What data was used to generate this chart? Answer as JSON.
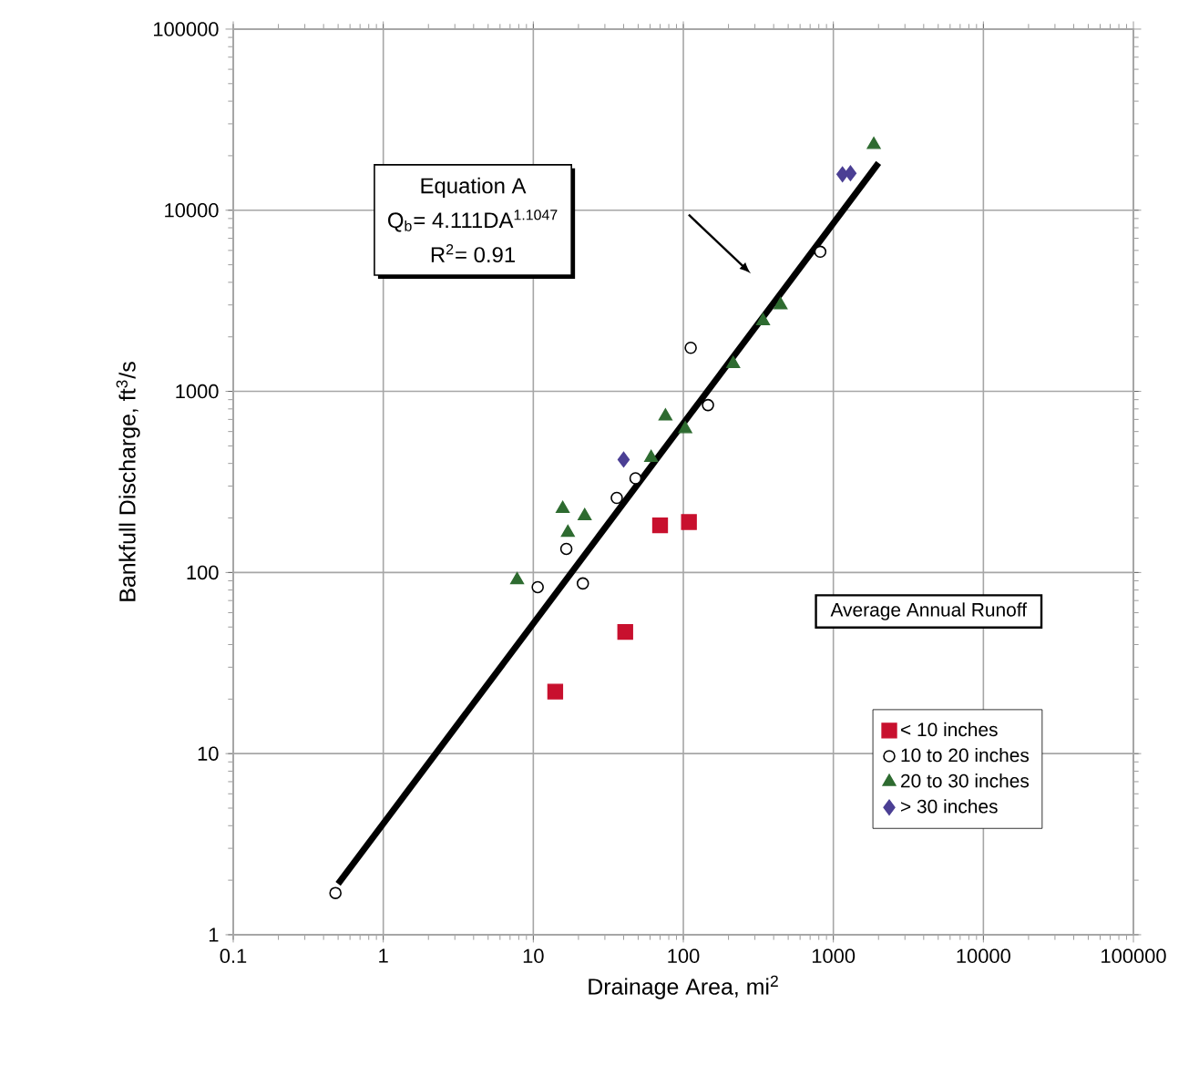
{
  "chart_data": {
    "type": "scatter",
    "xlabel": "Drainage Area, mi$^{2}$",
    "ylabel": "Bankfull Discharge, ft$^{3}$/s",
    "log": "xy",
    "grid": true,
    "legend": "bottom right",
    "legend_title": "Average Annual Runoff",
    "xlim": [
      0.1,
      100000
    ],
    "ylim": [
      1,
      100000
    ],
    "xticks": [
      0.1,
      1,
      10,
      100,
      1000,
      10000,
      100000
    ],
    "yticks": [
      1,
      10,
      100,
      1000,
      10000,
      100000
    ],
    "annotations": [
      "Equation A",
      "Q$_{b}$= 4.111DA$^{1.1047}$",
      "R$^{2}$= 0.91"
    ],
    "series": [
      {
        "name": "< 10 inches",
        "marker": "square",
        "color": "#c8102e",
        "x": [
          14,
          41,
          70,
          109
        ],
        "values": [
          22,
          47,
          182,
          190
        ]
      },
      {
        "name": "10 to 20 inches",
        "marker": "circle",
        "color": "#000000",
        "x": [
          0.48,
          10.7,
          16.6,
          21.4,
          36,
          48,
          112,
          146,
          818
        ],
        "values": [
          1.7,
          83,
          135,
          87,
          258,
          331,
          1740,
          840,
          5900
        ]
      },
      {
        "name": "20 to 30 inches",
        "marker": "triangle",
        "color": "#2e6b30",
        "x": [
          7.8,
          15.7,
          17,
          22,
          61,
          76,
          103,
          215,
          340,
          445,
          1860
        ],
        "values": [
          91,
          225,
          166,
          205,
          430,
          730,
          620,
          1420,
          2450,
          3000,
          23000
        ]
      },
      {
        "name": "> 30 inches",
        "marker": "diamond",
        "color": "#4b3f94",
        "x": [
          40,
          1150,
          1300
        ],
        "values": [
          420,
          15800,
          16000
        ]
      },
      {
        "type": "line",
        "color": "#000000",
        "x": [
          0.5,
          2000
        ],
        "values": [
          1.91,
          18224
        ]
      }
    ]
  }
}
